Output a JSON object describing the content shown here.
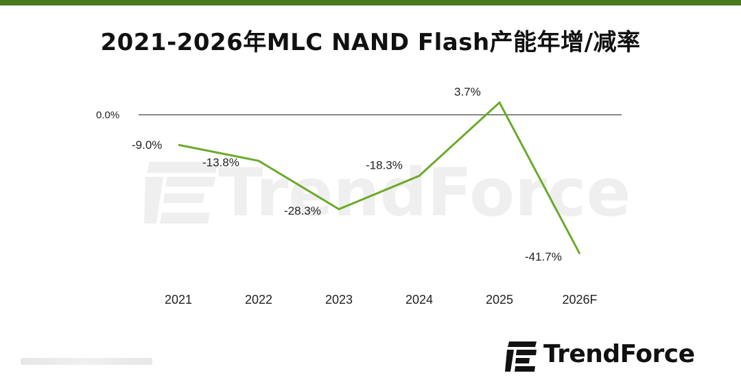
{
  "header": {
    "title": "2021-2026年MLC NAND Flash产能年增/减率"
  },
  "colors": {
    "accent": "#4a7a1e",
    "line": "#6aaa2a",
    "baseline": "#222222",
    "watermark": "#efefef"
  },
  "watermark": {
    "text": "TrendForce"
  },
  "logo": {
    "text": "TrendForce"
  },
  "chart_data": {
    "type": "line",
    "title": "2021-2026年MLC NAND Flash产能年增/减率",
    "xlabel": "",
    "ylabel": "",
    "categories": [
      "2021",
      "2022",
      "2023",
      "2024",
      "2025",
      "2026F"
    ],
    "series": [
      {
        "values": [
          -9.0,
          -13.8,
          -28.3,
          -18.3,
          3.7,
          -41.7
        ],
        "labels": [
          "-9.0%",
          "-13.8%",
          "-28.3%",
          "-18.3%",
          "3.7%",
          "-41.7%"
        ]
      }
    ],
    "reference_line": {
      "value": 0.0,
      "label": "0.0%"
    },
    "ylim": [
      -45,
      5
    ],
    "grid": false,
    "legend": "none"
  }
}
